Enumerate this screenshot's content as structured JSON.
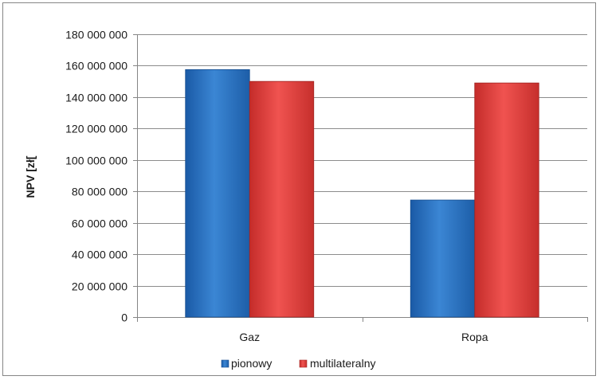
{
  "chart_data": {
    "type": "bar",
    "title": "",
    "xlabel": "",
    "ylabel": "NPV [zł[",
    "categories": [
      "Gaz",
      "Ropa"
    ],
    "series": [
      {
        "name": "pionowy",
        "values": [
          157500000,
          74500000
        ],
        "color": "#2e75c6"
      },
      {
        "name": "multilateralny",
        "values": [
          150000000,
          149000000
        ],
        "color": "#e8403d"
      }
    ],
    "ylim": [
      0,
      180000000
    ],
    "y_ticks": [
      0,
      20000000,
      40000000,
      60000000,
      80000000,
      100000000,
      120000000,
      140000000,
      160000000,
      180000000
    ],
    "y_tick_labels": [
      "0",
      "20 000 000",
      "40 000 000",
      "60 000 000",
      "80 000 000",
      "100 000 000",
      "120 000 000",
      "140 000 000",
      "160 000 000",
      "180 000 000"
    ],
    "grid": true,
    "legend_position": "bottom"
  }
}
